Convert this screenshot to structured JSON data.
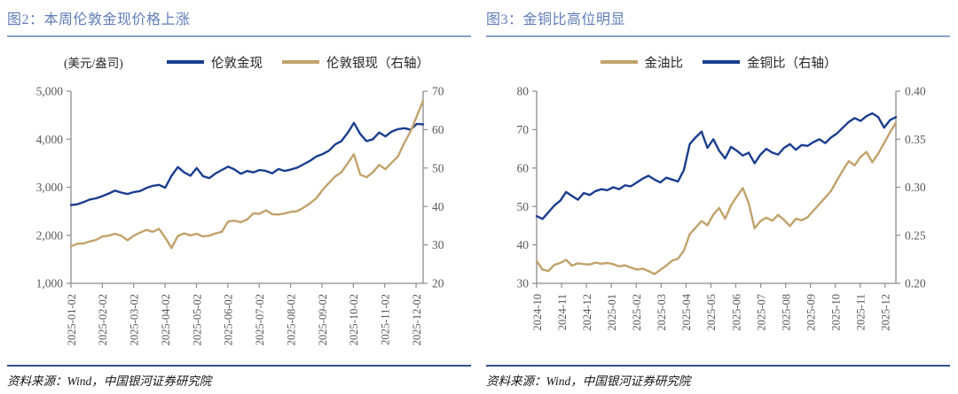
{
  "panels": [
    {
      "title": "图2：本周伦敦金现价格上涨",
      "unit_label": "(美元/盎司)",
      "source": "资料来源：Wind，中国银河证券研究院"
    },
    {
      "title": "图3：金铜比高位明显",
      "source": "资料来源：Wind，中国银河证券研究院"
    }
  ],
  "colors": {
    "line_navy": "#1a3d8f",
    "line_tan": "#c1a26b",
    "title_blue": "#5f7cb8",
    "rule_light": "#8aa0cc",
    "rule_dark": "#33508f",
    "axis_gray": "#8c8c8c",
    "tick_text": "#595959"
  },
  "chart_data": [
    {
      "type": "line",
      "title": "图2：本周伦敦金现价格上涨",
      "unit_label": "(美元/盎司)",
      "legend_position": "top",
      "grid": false,
      "x_tick_labels": [
        "2025-01-02",
        "2025-02-02",
        "2025-03-02",
        "2025-04-02",
        "2025-05-02",
        "2025-06-02",
        "2025-07-02",
        "2025-08-02",
        "2025-09-02",
        "2025-10-02",
        "2025-11-02",
        "2025-12-02"
      ],
      "left_axis": {
        "min": 1000,
        "max": 5000,
        "tick_labels": [
          "5,000",
          "4,000",
          "3,000",
          "2,000",
          "1,000"
        ]
      },
      "right_axis": {
        "min": 20,
        "max": 70,
        "tick_labels": [
          "70",
          "60",
          "50",
          "40",
          "30",
          "20"
        ]
      },
      "series": [
        {
          "name": "伦敦金现",
          "axis": "left",
          "color": "#1a3d8f",
          "values": [
            2630,
            2645,
            2690,
            2745,
            2770,
            2815,
            2870,
            2930,
            2890,
            2860,
            2900,
            2920,
            2985,
            3030,
            3050,
            2990,
            3240,
            3420,
            3310,
            3240,
            3400,
            3230,
            3190,
            3290,
            3360,
            3430,
            3370,
            3280,
            3340,
            3310,
            3360,
            3340,
            3290,
            3380,
            3340,
            3370,
            3410,
            3480,
            3550,
            3640,
            3690,
            3760,
            3890,
            3960,
            4130,
            4340,
            4110,
            3960,
            4000,
            4140,
            4060,
            4160,
            4210,
            4230,
            4200,
            4320,
            4310
          ]
        },
        {
          "name": "伦敦银现（右轴）",
          "axis": "right",
          "color": "#c1a26b",
          "values": [
            29.6,
            30.3,
            30.4,
            30.9,
            31.3,
            32.2,
            32.4,
            32.9,
            32.4,
            31.2,
            32.4,
            33.2,
            33.9,
            33.4,
            34.2,
            31.9,
            29.2,
            32.3,
            33.0,
            32.5,
            32.9,
            32.2,
            32.4,
            33.0,
            33.4,
            36.1,
            36.3,
            35.9,
            36.6,
            38.2,
            38.1,
            39.0,
            38.0,
            37.9,
            38.2,
            38.6,
            38.8,
            39.7,
            40.8,
            42.1,
            44.3,
            46.1,
            47.8,
            48.9,
            51.2,
            53.6,
            48.3,
            47.6,
            48.9,
            50.8,
            49.7,
            51.4,
            53.0,
            56.5,
            59.5,
            63.5,
            67.5
          ]
        }
      ]
    },
    {
      "type": "line",
      "title": "图3：金铜比高位明显",
      "legend_position": "top",
      "grid": false,
      "x_tick_labels": [
        "2024-10",
        "2024-11",
        "2024-12",
        "2025-01",
        "2025-02",
        "2025-03",
        "2025-04",
        "2025-05",
        "2025-06",
        "2025-07",
        "2025-08",
        "2025-09",
        "2025-10",
        "2025-11",
        "2025-12"
      ],
      "left_axis": {
        "min": 30,
        "max": 80,
        "tick_labels": [
          "80",
          "70",
          "60",
          "50",
          "40",
          "30"
        ]
      },
      "right_axis": {
        "min": 0.2,
        "max": 0.4,
        "tick_labels": [
          "0.40",
          "0.35",
          "0.30",
          "0.25",
          "0.20"
        ]
      },
      "series": [
        {
          "name": "金油比",
          "axis": "left",
          "color": "#c1a26b",
          "values": [
            35.8,
            33.6,
            33.2,
            34.8,
            35.3,
            36.1,
            34.6,
            35.2,
            35.0,
            34.9,
            35.4,
            35.1,
            35.3,
            35.0,
            34.4,
            34.7,
            34.1,
            33.6,
            33.8,
            33.2,
            32.4,
            33.5,
            34.6,
            35.9,
            36.4,
            38.5,
            42.8,
            44.5,
            46.2,
            45.1,
            47.9,
            49.6,
            46.8,
            50.3,
            52.6,
            54.8,
            50.9,
            44.3,
            46.2,
            47.1,
            46.3,
            47.8,
            46.5,
            44.9,
            46.8,
            46.4,
            47.2,
            48.9,
            50.6,
            52.3,
            54.1,
            56.8,
            59.4,
            61.8,
            60.7,
            62.9,
            64.2,
            61.5,
            63.8,
            66.5,
            69.3,
            71.8
          ]
        },
        {
          "name": "金铜比（右轴）",
          "axis": "right",
          "color": "#1a3d8f",
          "values": [
            0.27,
            0.267,
            0.274,
            0.281,
            0.286,
            0.295,
            0.291,
            0.287,
            0.294,
            0.292,
            0.296,
            0.298,
            0.297,
            0.3,
            0.298,
            0.302,
            0.301,
            0.305,
            0.309,
            0.312,
            0.308,
            0.305,
            0.31,
            0.308,
            0.306,
            0.318,
            0.345,
            0.352,
            0.358,
            0.341,
            0.35,
            0.338,
            0.33,
            0.342,
            0.338,
            0.333,
            0.336,
            0.325,
            0.334,
            0.34,
            0.336,
            0.334,
            0.341,
            0.345,
            0.339,
            0.344,
            0.343,
            0.347,
            0.35,
            0.346,
            0.352,
            0.356,
            0.362,
            0.368,
            0.372,
            0.369,
            0.374,
            0.377,
            0.373,
            0.362,
            0.37,
            0.373
          ]
        }
      ]
    }
  ]
}
